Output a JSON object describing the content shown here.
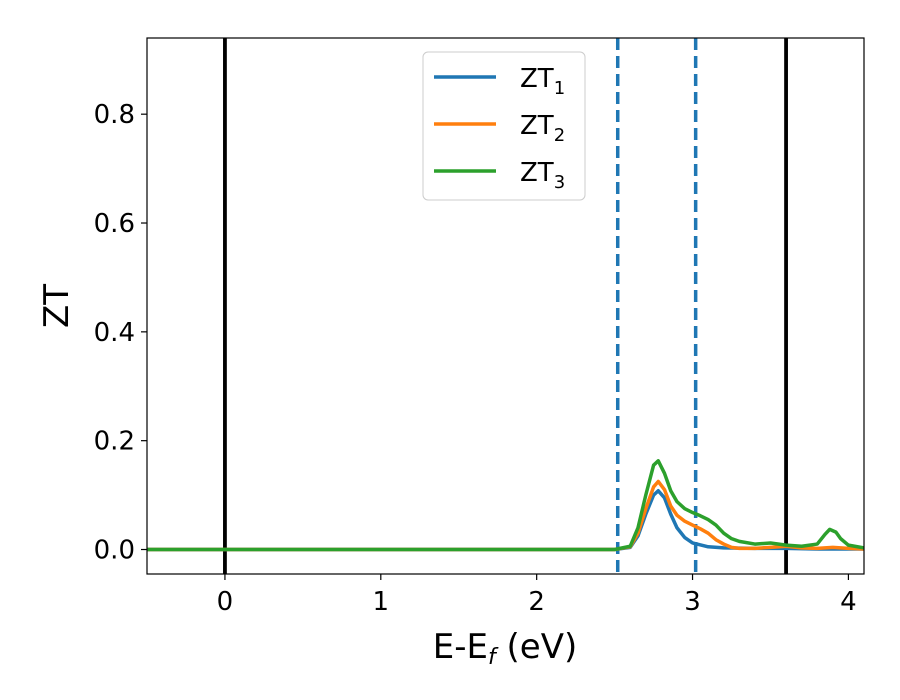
{
  "chart_data": {
    "type": "line",
    "title": "",
    "xlabel": "E-E",
    "xlabel_sub": "f",
    "xlabel_suffix": " (eV)",
    "ylabel": "ZT",
    "xlim": [
      -0.5,
      4.1
    ],
    "ylim": [
      -0.045,
      0.94
    ],
    "xticks": [
      0,
      1,
      2,
      3,
      4
    ],
    "xtick_labels": [
      "0",
      "1",
      "2",
      "3",
      "4"
    ],
    "yticks": [
      0.0,
      0.2,
      0.4,
      0.6,
      0.8
    ],
    "ytick_labels": [
      "0.0",
      "0.2",
      "0.4",
      "0.6",
      "0.8"
    ],
    "grid": false,
    "legend_position": "top-center",
    "vertical_lines": [
      {
        "x": 0.0,
        "style": "solid",
        "color": "#000000"
      },
      {
        "x": 2.52,
        "style": "dashed",
        "color": "#1f77b4"
      },
      {
        "x": 3.02,
        "style": "dashed",
        "color": "#1f77b4"
      },
      {
        "x": 3.6,
        "style": "solid",
        "color": "#000000"
      }
    ],
    "series": [
      {
        "name": "ZT",
        "name_sub": "1",
        "color": "#1f77b4",
        "x": [
          -0.5,
          2.5,
          2.6,
          2.65,
          2.7,
          2.75,
          2.78,
          2.82,
          2.86,
          2.9,
          2.95,
          3.0,
          3.1,
          3.2,
          3.4,
          3.6,
          3.8,
          4.1
        ],
        "y": [
          0.0,
          0.0,
          0.004,
          0.025,
          0.065,
          0.1,
          0.108,
          0.095,
          0.065,
          0.04,
          0.022,
          0.012,
          0.005,
          0.003,
          0.002,
          0.002,
          0.001,
          0.001
        ]
      },
      {
        "name": "ZT",
        "name_sub": "2",
        "color": "#ff7f0e",
        "x": [
          -0.5,
          2.5,
          2.6,
          2.65,
          2.7,
          2.75,
          2.78,
          2.82,
          2.86,
          2.9,
          2.95,
          3.0,
          3.05,
          3.1,
          3.15,
          3.2,
          3.25,
          3.3,
          3.4,
          3.5,
          3.6,
          3.7,
          3.8,
          3.9,
          4.0,
          4.1
        ],
        "y": [
          0.0,
          0.0,
          0.005,
          0.03,
          0.075,
          0.115,
          0.125,
          0.11,
          0.08,
          0.063,
          0.052,
          0.045,
          0.038,
          0.03,
          0.018,
          0.01,
          0.004,
          0.002,
          0.002,
          0.004,
          0.006,
          0.003,
          0.002,
          0.004,
          0.002,
          0.001
        ]
      },
      {
        "name": "ZT",
        "name_sub": "3",
        "color": "#2ca02c",
        "x": [
          -0.5,
          2.5,
          2.6,
          2.65,
          2.7,
          2.75,
          2.78,
          2.82,
          2.86,
          2.9,
          2.95,
          3.0,
          3.05,
          3.1,
          3.15,
          3.2,
          3.25,
          3.3,
          3.4,
          3.5,
          3.6,
          3.7,
          3.8,
          3.85,
          3.88,
          3.92,
          3.95,
          4.0,
          4.1
        ],
        "y": [
          0.0,
          0.0,
          0.006,
          0.04,
          0.1,
          0.155,
          0.163,
          0.14,
          0.108,
          0.088,
          0.075,
          0.068,
          0.062,
          0.055,
          0.045,
          0.03,
          0.02,
          0.015,
          0.01,
          0.012,
          0.008,
          0.006,
          0.01,
          0.028,
          0.037,
          0.032,
          0.02,
          0.008,
          0.003
        ]
      }
    ]
  }
}
